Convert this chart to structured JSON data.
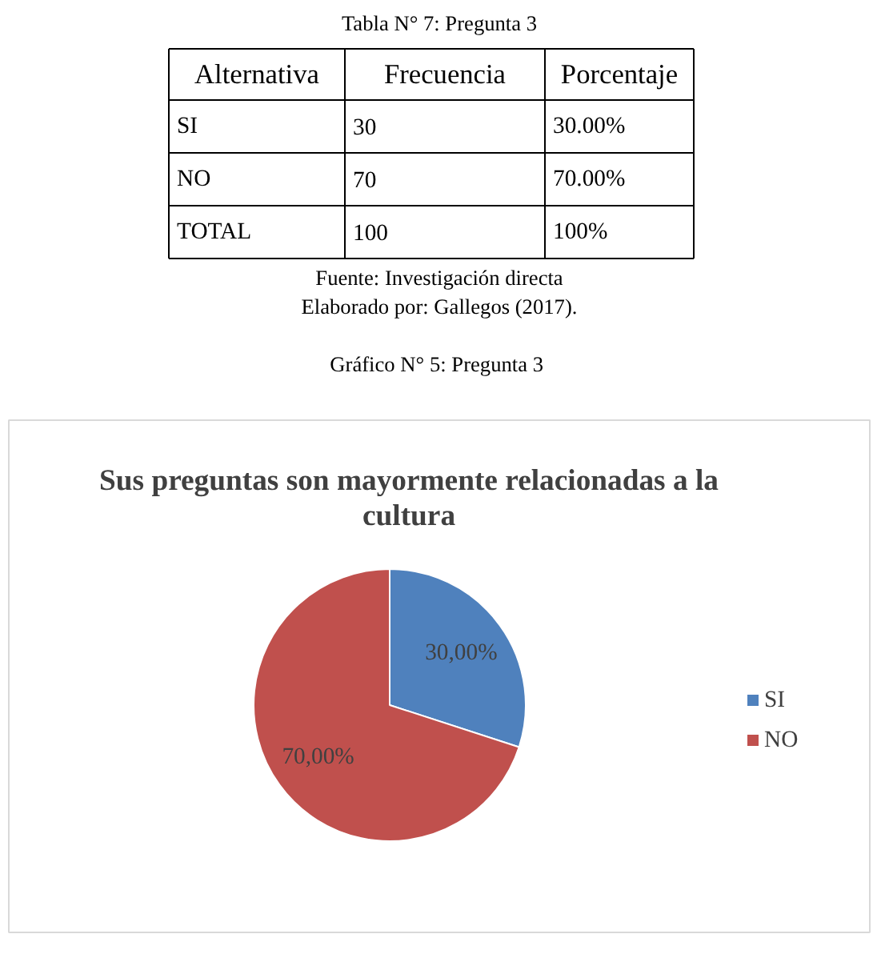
{
  "chart_data": {
    "type": "pie",
    "title": "Sus preguntas son mayormente relacionadas a la cultura",
    "categories": [
      "SI",
      "NO"
    ],
    "values": [
      30,
      70
    ],
    "colors": [
      "#4f81bd",
      "#c0504d"
    ],
    "value_labels": [
      "30,00%",
      "70,00%"
    ],
    "legend": "right",
    "annotations": [
      "Tabla N° 7: Pregunta 3",
      "Alternativa",
      "Frecuencia",
      "Porcentaje",
      "SI",
      "30",
      "30.00%",
      "NO",
      "70",
      "70.00%",
      "TOTAL",
      "100",
      "100%",
      "Fuente: Investigación directa",
      "Elaborado por: Gallegos (2017).",
      "Gráfico N°  5: Pregunta 3"
    ]
  }
}
